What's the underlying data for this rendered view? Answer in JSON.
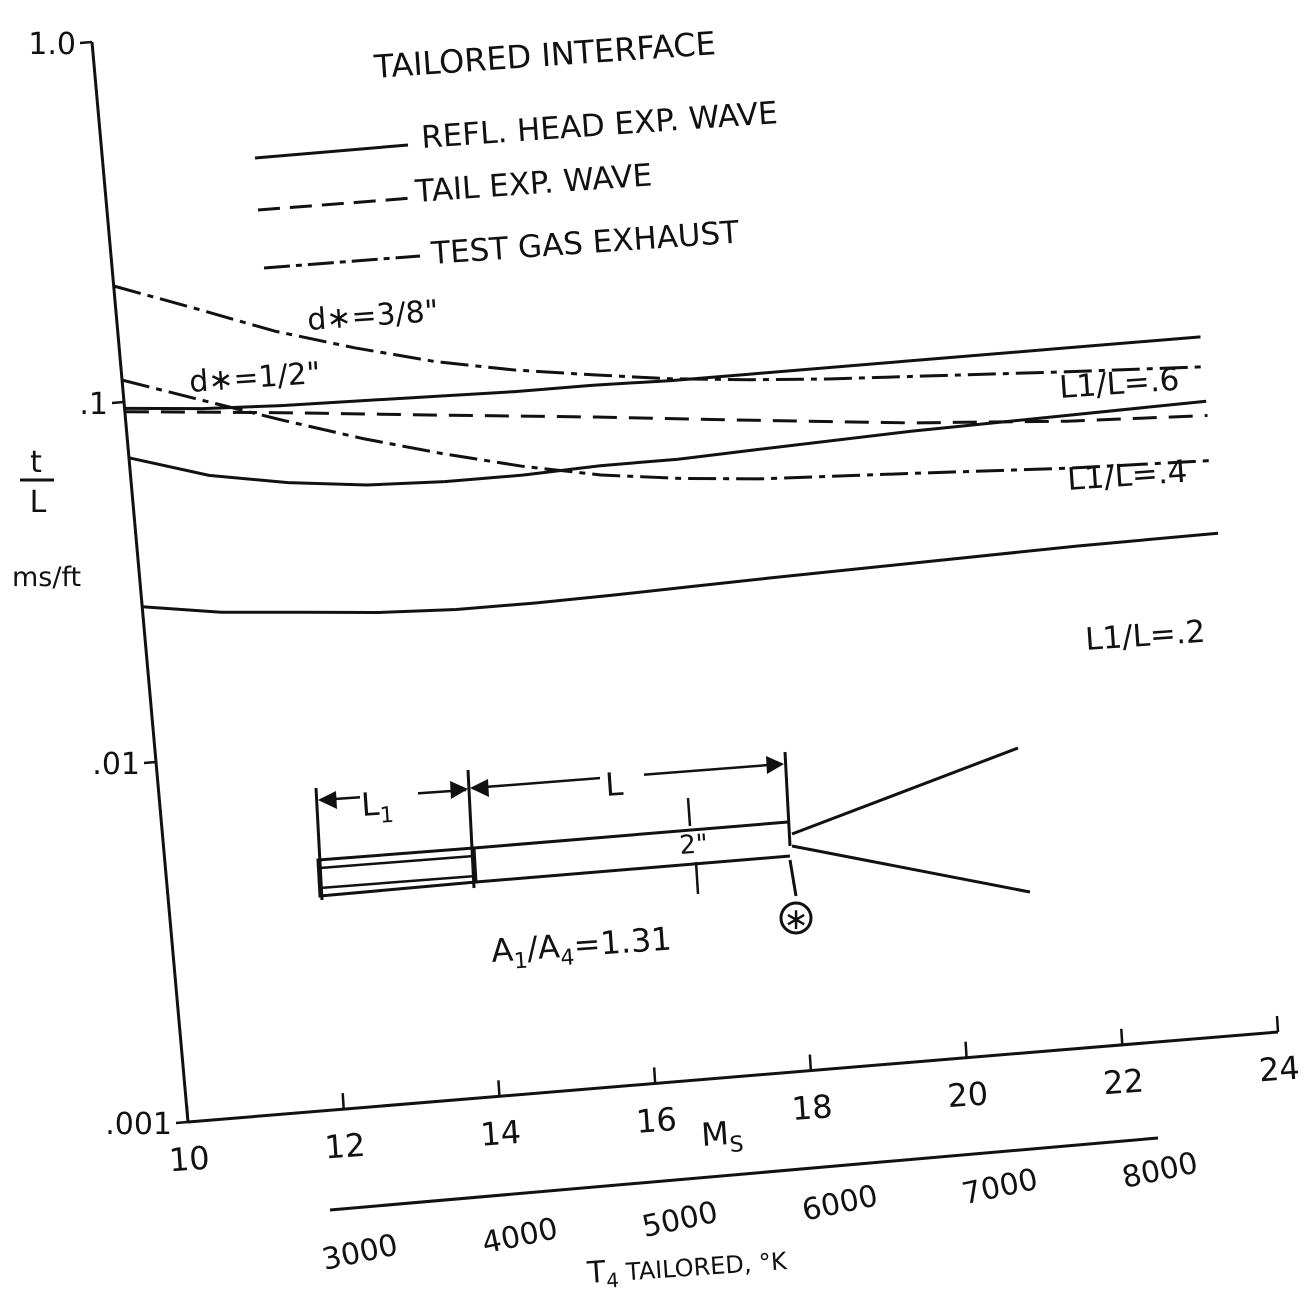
{
  "chart_data": {
    "type": "line",
    "title": "TAILORED INTERFACE",
    "xlabel": "M",
    "xlabel_sub": "S",
    "ylabel": "t/L",
    "ylabel_top": "t",
    "ylabel_bottom": "L",
    "yunit": "ms/ft",
    "yscale": "log",
    "xlim": [
      10,
      24
    ],
    "ylim": [
      0.001,
      1.0
    ],
    "x_ticks": [
      "10",
      "12",
      "14",
      "16",
      "18",
      "20",
      "22",
      "24"
    ],
    "y_ticks": [
      "1.0",
      ".1",
      ".01",
      ".001"
    ],
    "secondary_axis": {
      "label": "T4 TAILORED, °K",
      "label_main": "T",
      "label_sub": "4",
      "label_rest": " TAILORED, °K",
      "ticks": [
        "3000",
        "4000",
        "5000",
        "6000",
        "7000",
        "8000"
      ]
    },
    "legend": [
      {
        "label": "REFL. HEAD EXP. WAVE",
        "style": "solid"
      },
      {
        "label": "TAIL EXP. WAVE",
        "style": "dashed"
      },
      {
        "label": "TEST GAS EXHAUST",
        "style": "dashdot"
      }
    ],
    "legend_position": "top-center",
    "series": [
      {
        "style": "solid",
        "x": [
          10,
          11,
          12,
          13,
          14,
          15,
          16,
          17,
          18,
          20,
          22,
          23.8
        ],
        "y": [
          0.096,
          0.092,
          0.09,
          0.089,
          0.088,
          0.087,
          0.087,
          0.086,
          0.086,
          0.086,
          0.086,
          0.086
        ]
      },
      {
        "style": "dashed",
        "x": [
          10,
          12,
          14,
          16,
          18,
          20,
          22,
          23.8
        ],
        "y": [
          0.094,
          0.086,
          0.078,
          0.071,
          0.064,
          0.058,
          0.054,
          0.052
        ]
      },
      {
        "style": "dashdot",
        "x": [
          10,
          11,
          12,
          13,
          14,
          15,
          16,
          17,
          18,
          19,
          20,
          22,
          23.8
        ],
        "y": [
          0.21,
          0.175,
          0.145,
          0.125,
          0.11,
          0.1,
          0.093,
          0.087,
          0.083,
          0.08,
          0.078,
          0.074,
          0.071
        ]
      },
      {
        "style": "dashdot",
        "x": [
          10,
          11,
          12,
          13,
          14,
          15,
          16,
          17,
          18,
          20,
          22,
          23.8
        ],
        "y": [
          0.115,
          0.097,
          0.082,
          0.07,
          0.061,
          0.054,
          0.049,
          0.046,
          0.044,
          0.042,
          0.04,
          0.039
        ]
      },
      {
        "style": "solid",
        "x": [
          10,
          11,
          12,
          13,
          14,
          15,
          16,
          17,
          18,
          20,
          22,
          23.8
        ],
        "y": [
          0.07,
          0.06,
          0.055,
          0.052,
          0.051,
          0.051,
          0.052,
          0.052,
          0.053,
          0.055,
          0.056,
          0.057
        ]
      },
      {
        "style": "solid",
        "x": [
          10,
          11,
          12,
          13,
          14,
          15,
          16,
          17,
          18,
          20,
          22,
          23.8
        ],
        "y": [
          0.027,
          0.025,
          0.024,
          0.023,
          0.0225,
          0.0225,
          0.0227,
          0.023,
          0.0233,
          0.0238,
          0.0243,
          0.0245
        ]
      }
    ],
    "annotations": {
      "d_three_eighths": "d∗=3/8\"",
      "d_half": "d∗=1/2\"",
      "l_ratio_06": "L1/L=.6",
      "l_ratio_04": "L1/L=.4",
      "l_ratio_02": "L1/L=.2"
    },
    "inset": {
      "l1_label": "L1",
      "l_label": "L",
      "diameter": "2\"",
      "area_ratio": "A1/A4=1.31",
      "nozzle_symbol": "∗"
    }
  }
}
